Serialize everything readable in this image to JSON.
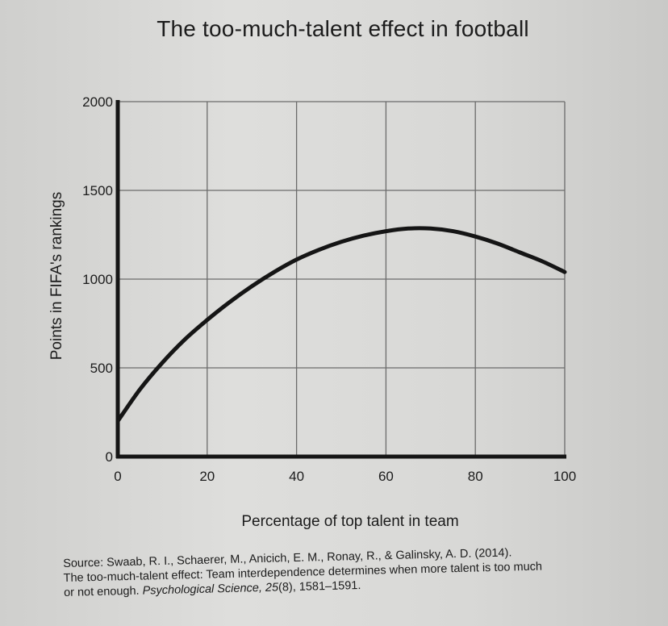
{
  "title": "The too-much-talent effect in football",
  "chart_data": {
    "type": "line",
    "title": "The too-much-talent effect in football",
    "xlabel": "Percentage of top talent in team",
    "ylabel": "Points in FIFA's rankings",
    "xlim": [
      0,
      100
    ],
    "ylim": [
      0,
      2000
    ],
    "x_ticks": [
      0,
      20,
      40,
      60,
      80,
      100
    ],
    "y_ticks": [
      0,
      500,
      1000,
      1500,
      2000
    ],
    "grid": true,
    "series": [
      {
        "x": [
          0,
          5,
          10,
          15,
          20,
          25,
          30,
          35,
          40,
          45,
          50,
          55,
          60,
          65,
          70,
          75,
          80,
          85,
          90,
          95,
          100
        ],
        "y": [
          200,
          380,
          530,
          660,
          770,
          870,
          960,
          1040,
          1110,
          1165,
          1210,
          1245,
          1270,
          1285,
          1285,
          1270,
          1240,
          1200,
          1150,
          1100,
          1040
        ]
      }
    ]
  },
  "caption": {
    "line1": "Source: Swaab, R. I., Schaerer, M., Anicich, E. M., Ronay, R., & Galinsky, A. D. (2014).",
    "line2": "The too-much-talent effect: Team interdependence determines when more talent is too much",
    "line3_plain_a": "or not enough. ",
    "line3_italic_a": "Psychological Science, 25",
    "line3_plain_b": "(8), 1581–1591."
  }
}
